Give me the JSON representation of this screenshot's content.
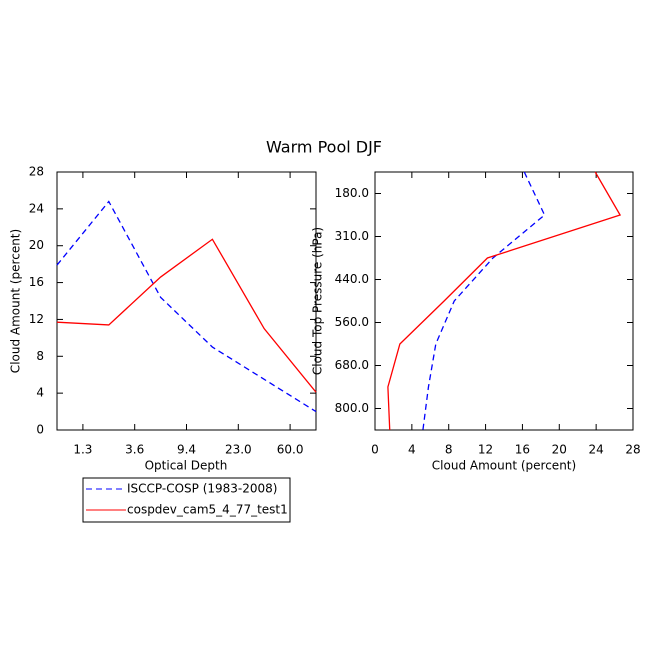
{
  "title": "Warm Pool DJF",
  "chart_data": [
    {
      "type": "line",
      "categories": [
        null,
        null,
        null,
        null,
        null,
        null
      ],
      "xlabel": "Optical Depth",
      "ylabel": "Cloud Amount (percent)",
      "xticks": [
        {
          "value": 0.5,
          "label": "1.3"
        },
        {
          "value": 1.5,
          "label": "3.6"
        },
        {
          "value": 2.5,
          "label": "9.4"
        },
        {
          "value": 3.5,
          "label": "23.0"
        },
        {
          "value": 4.5,
          "label": "60.0"
        }
      ],
      "ylim": [
        0,
        28
      ],
      "yticks": [
        0,
        4,
        8,
        12,
        16,
        20,
        24,
        28
      ],
      "series": [
        {
          "name": "ISCCP-COSP (1983-2008)",
          "color": "#0000ff",
          "line_style": "dashed",
          "values": [
            17.9,
            24.8,
            14.4,
            9.0,
            5.5,
            2.0
          ]
        },
        {
          "name": "cospdev_cam5_4_77_test1",
          "color": "#ff0000",
          "line_style": "solid",
          "values": [
            11.7,
            11.4,
            16.6,
            20.7,
            11.0,
            4.1
          ]
        }
      ]
    },
    {
      "type": "line",
      "category_axis": "y",
      "categories": [
        null,
        null,
        null,
        null,
        null,
        null,
        null
      ],
      "xlabel": "Cloud Amount (percent)",
      "ylabel": "Cloud Top Pressure (hPa)",
      "xlim": [
        0,
        28
      ],
      "xticks": [
        0,
        4,
        8,
        12,
        16,
        20,
        24,
        28
      ],
      "yticks": [
        {
          "value": 0.5,
          "label": "180.0"
        },
        {
          "value": 1.5,
          "label": "310.0"
        },
        {
          "value": 2.5,
          "label": "440.0"
        },
        {
          "value": 3.5,
          "label": "560.0"
        },
        {
          "value": 4.5,
          "label": "680.0"
        },
        {
          "value": 5.5,
          "label": "800.0"
        }
      ],
      "series": [
        {
          "color": "#0000ff",
          "line_style": "dashed",
          "values": [
            16.2,
            18.4,
            12.8,
            8.6,
            6.6,
            5.8,
            5.2
          ]
        },
        {
          "color": "#ff0000",
          "line_style": "solid",
          "values": [
            23.9,
            26.6,
            12.2,
            7.5,
            2.7,
            1.4,
            1.6
          ]
        }
      ]
    }
  ]
}
